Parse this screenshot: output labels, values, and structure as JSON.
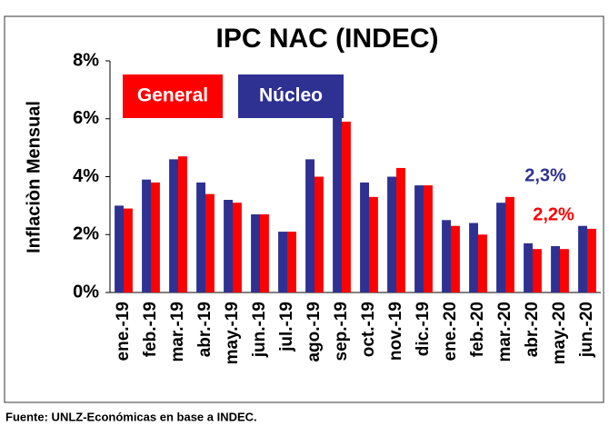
{
  "chart_data": {
    "type": "bar",
    "title": "IPC NAC (INDEC)",
    "y_label": "Inflaciòn Mensual",
    "source": "Fuente: UNLZ-Económicas en base a INDEC.",
    "categories": [
      "ene.-19",
      "feb.-19",
      "mar.-19",
      "abr.-19",
      "may.-19",
      "jun.-19",
      "jul.-19",
      "ago.-19",
      "sep.-19",
      "oct.-19",
      "nov.-19",
      "dic.-19",
      "ene.-20",
      "feb.-20",
      "mar.-20",
      "abr.-20",
      "may.-20",
      "jun.-20"
    ],
    "series": [
      {
        "name": "Núcleo",
        "color": "#2e3192",
        "values": [
          3.0,
          3.9,
          4.6,
          3.8,
          3.2,
          2.7,
          2.1,
          4.6,
          6.1,
          3.8,
          4.0,
          3.7,
          2.5,
          2.4,
          3.1,
          1.7,
          1.6,
          2.3
        ]
      },
      {
        "name": "General",
        "color": "#ff0000",
        "values": [
          2.9,
          3.8,
          4.7,
          3.4,
          3.1,
          2.7,
          2.1,
          4.0,
          5.9,
          3.3,
          4.3,
          3.7,
          2.3,
          2.0,
          3.3,
          1.5,
          1.5,
          2.2
        ]
      }
    ],
    "legend_order": [
      1,
      0
    ],
    "annotations": [
      {
        "text": "2,3%",
        "color": "#2e3192"
      },
      {
        "text": "2,2%",
        "color": "#ff0000"
      }
    ],
    "ylim": [
      0,
      8
    ],
    "yticks": [
      {
        "value": 0,
        "label": "0%"
      },
      {
        "value": 2,
        "label": "2%"
      },
      {
        "value": 4,
        "label": "4%"
      },
      {
        "value": 6,
        "label": "6%"
      },
      {
        "value": 8,
        "label": "8%"
      }
    ]
  }
}
